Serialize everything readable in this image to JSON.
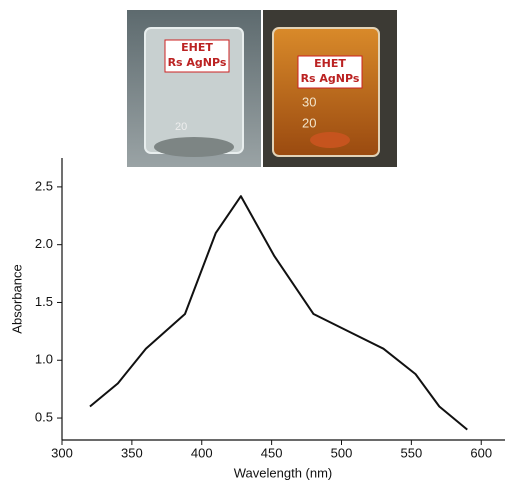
{
  "chart_data": {
    "type": "line",
    "x_label": "Wavelength (nm)",
    "y_label": "Absorbance",
    "x": [
      320,
      340,
      360,
      388,
      410,
      428,
      452,
      480,
      505,
      530,
      553,
      570,
      590
    ],
    "series": [
      {
        "color": "#111111",
        "values": [
          0.6,
          0.8,
          1.1,
          1.4,
          2.1,
          2.42,
          1.9,
          1.4,
          1.25,
          1.1,
          0.88,
          0.6,
          0.4
        ]
      }
    ],
    "xlim": [
      300,
      617
    ],
    "ylim": [
      0.31,
      2.75
    ],
    "xticks": [
      300,
      350,
      400,
      450,
      500,
      550,
      600
    ],
    "yticks": [
      0.5,
      {
        "value": 1,
        "label": "1.0"
      },
      1.5,
      {
        "value": 2,
        "label": "2.0"
      },
      2.5
    ]
  },
  "photo": {
    "labels": [
      "EHET",
      "Rs AgNPs",
      "EHET",
      "Rs AgNPs"
    ],
    "graduations": [
      "20",
      "30",
      "20"
    ]
  }
}
